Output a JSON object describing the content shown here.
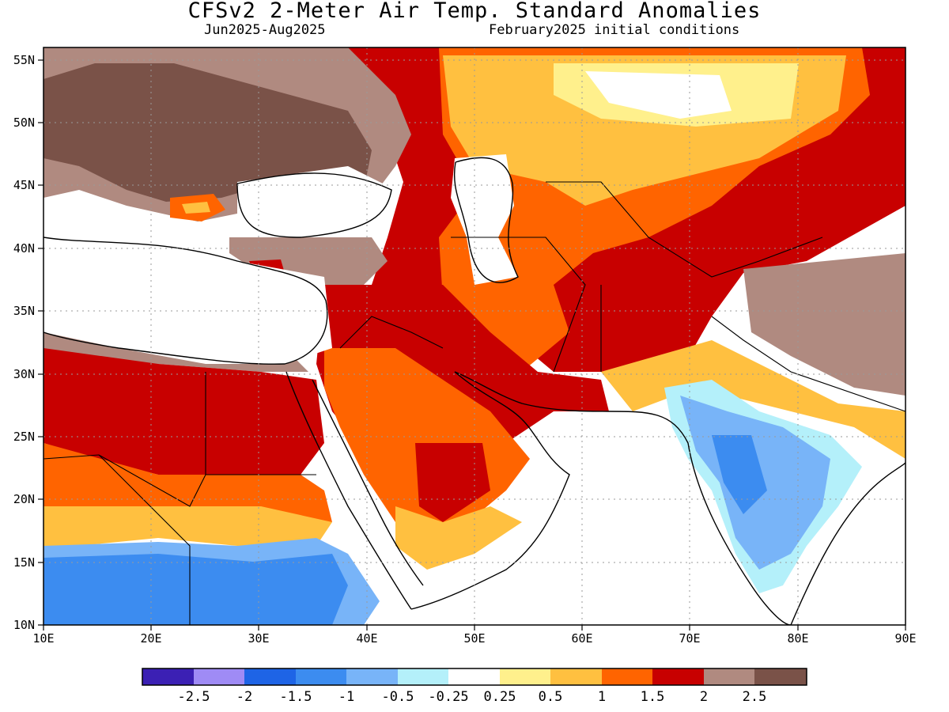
{
  "title": "CFSv2 2-Meter Air Temp. Standard Anomalies",
  "period": "Jun2025-Aug2025",
  "init": "February2025 initial conditions",
  "lon_ticks": [
    "10E",
    "20E",
    "30E",
    "40E",
    "50E",
    "60E",
    "70E",
    "80E",
    "90E"
  ],
  "lat_ticks": [
    "55N",
    "50N",
    "45N",
    "40N",
    "35N",
    "30N",
    "25N",
    "20N",
    "15N",
    "10N"
  ],
  "extent": {
    "lon": [
      10,
      90
    ],
    "lat": [
      10,
      56
    ]
  },
  "colorbar": {
    "colors": [
      "#3b20b4",
      "#9f8bf5",
      "#1e64e6",
      "#3c8cf0",
      "#78b4f8",
      "#b4f0fa",
      "#ffffff",
      "#fff08c",
      "#ffc040",
      "#ff6400",
      "#c80000",
      "#b08a80",
      "#7a5248"
    ],
    "labels": [
      "-2.5",
      "-2",
      "-1.5",
      "-1",
      "-0.5",
      "-0.25",
      "0.25",
      "0.5",
      "1",
      "1.5",
      "2",
      "2.5"
    ]
  },
  "icons": {
    "map": "map-projection",
    "legend": "colorbar"
  }
}
